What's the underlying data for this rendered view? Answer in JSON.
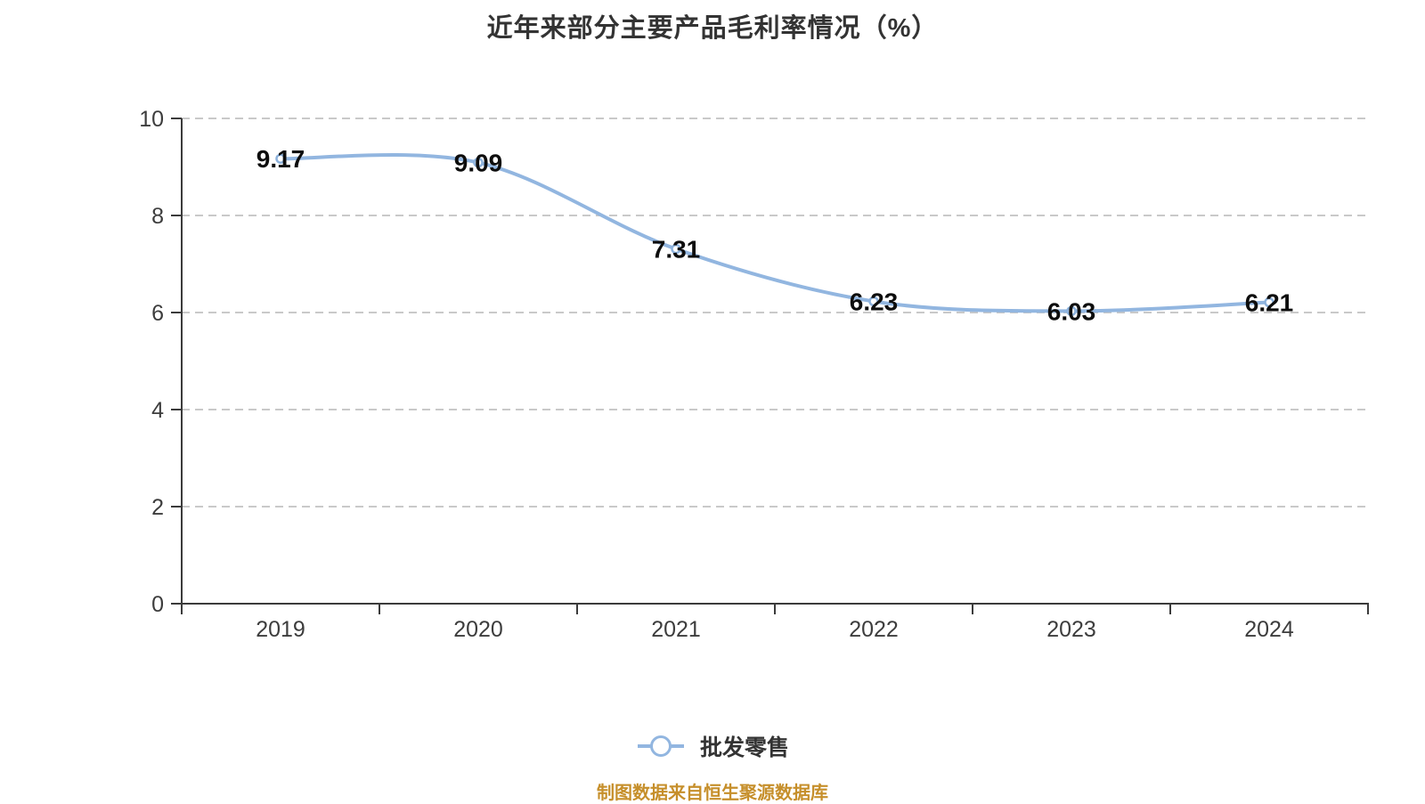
{
  "title": {
    "text": "近年来部分主要产品毛利率情况（%）"
  },
  "legend": {
    "label": "批发零售"
  },
  "footer": {
    "text": "制图数据来自恒生聚源数据库",
    "color": "#c68f2b"
  },
  "chart_data": {
    "type": "line",
    "title": "近年来部分主要产品毛利率情况（%）",
    "categories": [
      "2019",
      "2020",
      "2021",
      "2022",
      "2023",
      "2024"
    ],
    "series": [
      {
        "name": "批发零售",
        "values": [
          9.17,
          9.09,
          7.31,
          6.23,
          6.03,
          6.21
        ]
      }
    ],
    "data_labels": [
      "9.17",
      "9.09",
      "7.31",
      "6.23",
      "6.03",
      "6.21"
    ],
    "xlabel": "",
    "ylabel": "",
    "ylim": [
      0,
      10
    ],
    "yticks": [
      0,
      2,
      4,
      6,
      8,
      10
    ],
    "grid": true,
    "grid_style": "dashed",
    "legend_position": "bottom",
    "colors": {
      "line": "#92b6e0",
      "marker_fill": "#ffffff",
      "marker_stroke": "#8db2dc",
      "grid": "#c9c9c9",
      "axis": "#3b3b3b",
      "tick_label": "#3d3d3d",
      "data_label": "#0d0d0d",
      "background": "#ffffff"
    }
  }
}
